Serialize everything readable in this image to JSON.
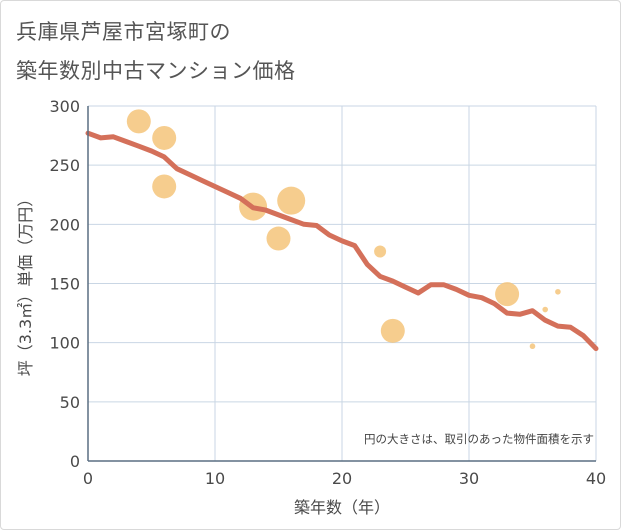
{
  "title_line1": "兵庫県芦屋市宮塚町の",
  "title_line2": "築年数別中古マンション価格",
  "chart_data": {
    "type": "scatter",
    "xlabel": "築年数（年）",
    "ylabel": "坪（3.3㎡）単価（万円）",
    "xlim": [
      0,
      40
    ],
    "ylim": [
      0,
      300
    ],
    "xticks": [
      0,
      10,
      20,
      30,
      40
    ],
    "yticks": [
      0,
      50,
      100,
      150,
      200,
      250,
      300
    ],
    "grid": true,
    "note": "円の大きさは、取引のあった物件面積を示す",
    "colors": {
      "trend": "#d4705a",
      "bubble": "#f5c47a",
      "grid": "#c9d6e4",
      "axis": "#5a6e82"
    },
    "scatter": [
      {
        "x": 4,
        "y": 287,
        "size": 3
      },
      {
        "x": 6,
        "y": 273,
        "size": 3
      },
      {
        "x": 6,
        "y": 232,
        "size": 3
      },
      {
        "x": 13,
        "y": 215,
        "size": 3.5
      },
      {
        "x": 15,
        "y": 188,
        "size": 3
      },
      {
        "x": 16,
        "y": 220,
        "size": 3.5
      },
      {
        "x": 23,
        "y": 177,
        "size": 1.5
      },
      {
        "x": 24,
        "y": 110,
        "size": 3
      },
      {
        "x": 33,
        "y": 141,
        "size": 3
      },
      {
        "x": 35,
        "y": 97,
        "size": 0.7
      },
      {
        "x": 36,
        "y": 128,
        "size": 0.7
      },
      {
        "x": 37,
        "y": 143,
        "size": 0.7
      }
    ],
    "trend": [
      {
        "x": 0,
        "y": 277
      },
      {
        "x": 1,
        "y": 273
      },
      {
        "x": 2,
        "y": 274
      },
      {
        "x": 3,
        "y": 270
      },
      {
        "x": 4,
        "y": 266
      },
      {
        "x": 5,
        "y": 262
      },
      {
        "x": 6,
        "y": 257
      },
      {
        "x": 7,
        "y": 247
      },
      {
        "x": 8,
        "y": 242
      },
      {
        "x": 9,
        "y": 237
      },
      {
        "x": 10,
        "y": 232
      },
      {
        "x": 11,
        "y": 227
      },
      {
        "x": 12,
        "y": 222
      },
      {
        "x": 13,
        "y": 214
      },
      {
        "x": 14,
        "y": 212
      },
      {
        "x": 15,
        "y": 208
      },
      {
        "x": 16,
        "y": 204
      },
      {
        "x": 17,
        "y": 200
      },
      {
        "x": 18,
        "y": 199
      },
      {
        "x": 19,
        "y": 191
      },
      {
        "x": 20,
        "y": 186
      },
      {
        "x": 21,
        "y": 182
      },
      {
        "x": 22,
        "y": 166
      },
      {
        "x": 23,
        "y": 156
      },
      {
        "x": 24,
        "y": 152
      },
      {
        "x": 25,
        "y": 147
      },
      {
        "x": 26,
        "y": 142
      },
      {
        "x": 27,
        "y": 149
      },
      {
        "x": 28,
        "y": 149
      },
      {
        "x": 29,
        "y": 145
      },
      {
        "x": 30,
        "y": 140
      },
      {
        "x": 31,
        "y": 138
      },
      {
        "x": 32,
        "y": 133
      },
      {
        "x": 33,
        "y": 125
      },
      {
        "x": 34,
        "y": 124
      },
      {
        "x": 35,
        "y": 127
      },
      {
        "x": 36,
        "y": 119
      },
      {
        "x": 37,
        "y": 114
      },
      {
        "x": 38,
        "y": 113
      },
      {
        "x": 39,
        "y": 106
      },
      {
        "x": 40,
        "y": 95
      }
    ]
  }
}
